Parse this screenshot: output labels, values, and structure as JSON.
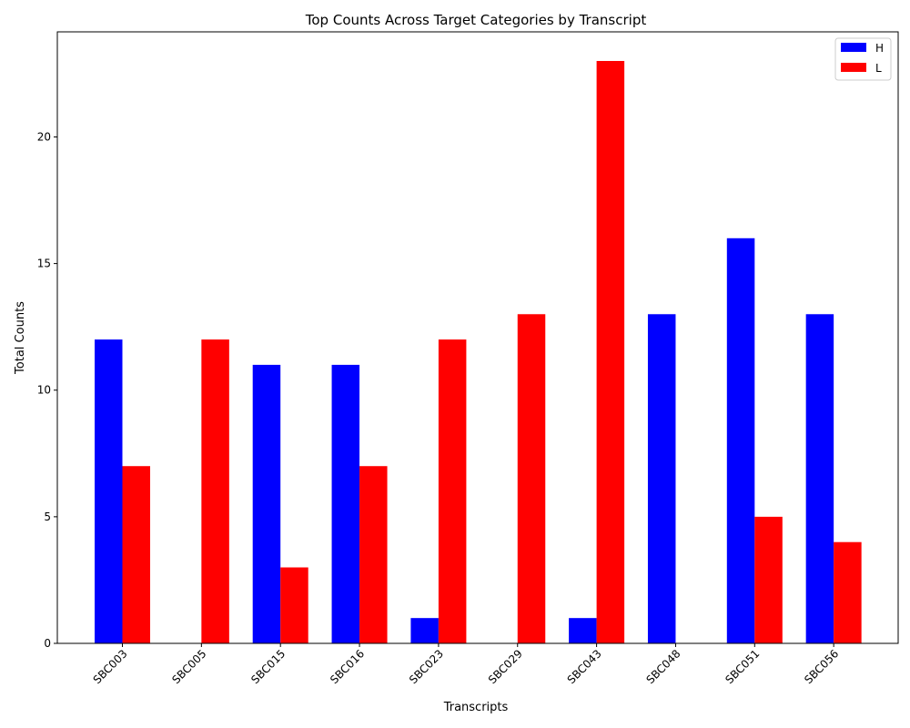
{
  "chart_data": {
    "type": "bar",
    "title": "Top Counts Across Target Categories by Transcript",
    "xlabel": "Transcripts",
    "ylabel": "Total Counts",
    "categories": [
      "SBC003",
      "SBC005",
      "SBC015",
      "SBC016",
      "SBC023",
      "SBC029",
      "SBC043",
      "SBC048",
      "SBC051",
      "SBC056"
    ],
    "series": [
      {
        "name": "H",
        "color": "#0000ff",
        "values": [
          12,
          0,
          11,
          11,
          1,
          0,
          1,
          13,
          16,
          13
        ]
      },
      {
        "name": "L",
        "color": "#ff0000",
        "values": [
          7,
          12,
          3,
          7,
          12,
          13,
          23,
          0,
          5,
          4
        ]
      }
    ],
    "ylim": [
      0,
      24.15
    ],
    "yticks": [
      0,
      5,
      10,
      15,
      20
    ],
    "grid": false,
    "legend_position": "top-right"
  }
}
